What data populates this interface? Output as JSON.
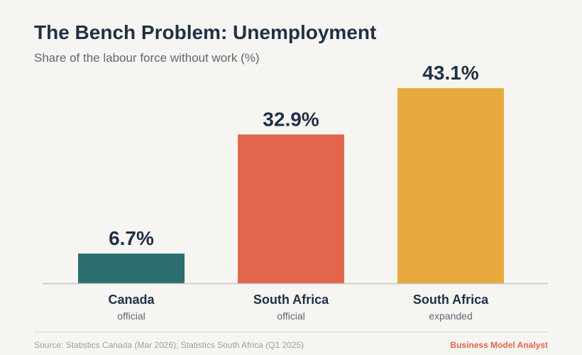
{
  "chart_data": {
    "type": "bar",
    "title": "The Bench Problem: Unemployment",
    "subtitle": "Share of the labour force without work (%)",
    "categories": [
      "Canada",
      "South Africa",
      "South Africa"
    ],
    "category_sublabels": [
      "official",
      "official",
      "expanded"
    ],
    "values": [
      6.7,
      32.9,
      43.1
    ],
    "data_labels": [
      "6.7%",
      "32.9%",
      "43.1%"
    ],
    "colors": [
      "#2b6e72",
      "#e2654c",
      "#e8a93d"
    ],
    "ylim": [
      0,
      50
    ],
    "grid": false,
    "legend": "none"
  },
  "footer": {
    "source": "Source: Statistics Canada (Mar 2026); Statistics South Africa (Q1 2025)",
    "brand": "Business Model Analyst"
  }
}
